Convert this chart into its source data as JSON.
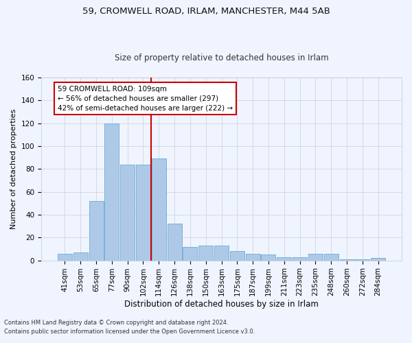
{
  "title1": "59, CROMWELL ROAD, IRLAM, MANCHESTER, M44 5AB",
  "title2": "Size of property relative to detached houses in Irlam",
  "xlabel": "Distribution of detached houses by size in Irlam",
  "ylabel": "Number of detached properties",
  "footnote1": "Contains HM Land Registry data © Crown copyright and database right 2024.",
  "footnote2": "Contains public sector information licensed under the Open Government Licence v3.0.",
  "bar_labels": [
    "41sqm",
    "53sqm",
    "65sqm",
    "77sqm",
    "90sqm",
    "102sqm",
    "114sqm",
    "126sqm",
    "138sqm",
    "150sqm",
    "163sqm",
    "175sqm",
    "187sqm",
    "199sqm",
    "211sqm",
    "223sqm",
    "235sqm",
    "248sqm",
    "260sqm",
    "272sqm",
    "284sqm"
  ],
  "bar_values": [
    6,
    7,
    52,
    120,
    84,
    84,
    89,
    32,
    12,
    13,
    13,
    8,
    6,
    5,
    3,
    3,
    6,
    6,
    1,
    1,
    2
  ],
  "bar_color": "#aec9e8",
  "bar_edge_color": "#6aaad4",
  "ylim": [
    0,
    160
  ],
  "yticks": [
    0,
    20,
    40,
    60,
    80,
    100,
    120,
    140,
    160
  ],
  "vline_x": 5.5,
  "vline_color": "#cc0000",
  "annotation_text": "59 CROMWELL ROAD: 109sqm\n← 56% of detached houses are smaller (297)\n42% of semi-detached houses are larger (222) →",
  "annotation_box_color": "white",
  "annotation_box_edge": "#cc0000",
  "bg_color": "#f0f4ff",
  "title1_fontsize": 9.5,
  "title2_fontsize": 8.5,
  "xlabel_fontsize": 8.5,
  "ylabel_fontsize": 8,
  "tick_fontsize": 7.5,
  "annot_fontsize": 7.5,
  "footnote_fontsize": 6
}
